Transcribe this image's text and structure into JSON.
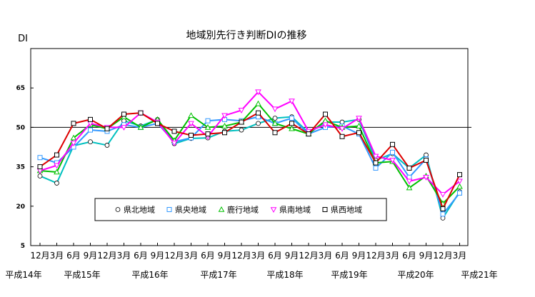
{
  "chart_data": {
    "type": "line",
    "title": "地域別先行き判断DIの推移",
    "ylabel": "DI",
    "ylim": [
      5,
      80
    ],
    "yticks": [
      5,
      20,
      35,
      50,
      65
    ],
    "reference_line": 50,
    "x_tick_labels": [
      "12月",
      "3月",
      "6月",
      "9月",
      "12月",
      "3月",
      "6月",
      "9月",
      "12月",
      "3月",
      "6月",
      "9月",
      "12月",
      "3月",
      "6月",
      "9月",
      "12月",
      "3月",
      "6月",
      "9月",
      "12月",
      "3月",
      "6月",
      "9月",
      "12月",
      "3月"
    ],
    "era_labels": [
      "平成14年",
      "平成15年",
      "平成16年",
      "平成17年",
      "平成18年",
      "平成19年",
      "平成20年",
      "平成21年"
    ],
    "legend_position": "bottom-center",
    "series": [
      {
        "name": "県北地域",
        "color": "#00c0c0",
        "marker": "circle",
        "values": [
          31.5,
          28.8,
          43.0,
          44.5,
          43.2,
          52.5,
          50.5,
          53.0,
          43.8,
          45.8,
          46.0,
          48.5,
          49.0,
          51.5,
          53.5,
          54.0,
          48.0,
          52.0,
          52.0,
          53.0,
          37.5,
          40.0,
          34.5,
          39.5,
          15.5,
          25.5
        ]
      },
      {
        "name": "県央地域",
        "color": "#3399ff",
        "marker": "square",
        "values": [
          38.5,
          36.5,
          42.5,
          49.0,
          48.5,
          51.0,
          50.0,
          51.5,
          44.5,
          46.0,
          52.5,
          53.0,
          52.5,
          54.0,
          51.5,
          53.5,
          47.5,
          50.0,
          50.5,
          47.5,
          34.5,
          40.5,
          31.0,
          38.0,
          17.0,
          25.0
        ]
      },
      {
        "name": "鹿行地域",
        "color": "#00c000",
        "marker": "triangle-up",
        "values": [
          33.5,
          33.0,
          46.0,
          51.0,
          49.5,
          54.0,
          50.0,
          53.0,
          45.0,
          54.5,
          50.0,
          50.5,
          52.0,
          59.0,
          51.5,
          49.5,
          47.5,
          52.5,
          50.0,
          50.5,
          36.5,
          37.0,
          27.0,
          31.5,
          21.0,
          27.5
        ]
      },
      {
        "name": "県南地域",
        "color": "#ff00ff",
        "marker": "triangle-down",
        "values": [
          33.5,
          35.5,
          44.0,
          51.5,
          50.0,
          50.0,
          55.5,
          52.0,
          44.0,
          51.5,
          46.5,
          54.5,
          56.5,
          63.5,
          57.0,
          60.0,
          48.5,
          51.0,
          49.5,
          53.5,
          39.0,
          37.5,
          29.5,
          31.0,
          24.5,
          29.5
        ]
      },
      {
        "name": "県西地域",
        "color": "#dd0000",
        "marker": "square",
        "values": [
          35.0,
          39.5,
          51.5,
          53.0,
          49.5,
          55.0,
          55.5,
          51.5,
          48.5,
          47.0,
          47.5,
          48.0,
          52.0,
          55.5,
          48.0,
          51.5,
          47.5,
          55.0,
          46.5,
          48.0,
          36.5,
          43.5,
          34.5,
          37.5,
          19.0,
          32.0
        ]
      }
    ]
  }
}
